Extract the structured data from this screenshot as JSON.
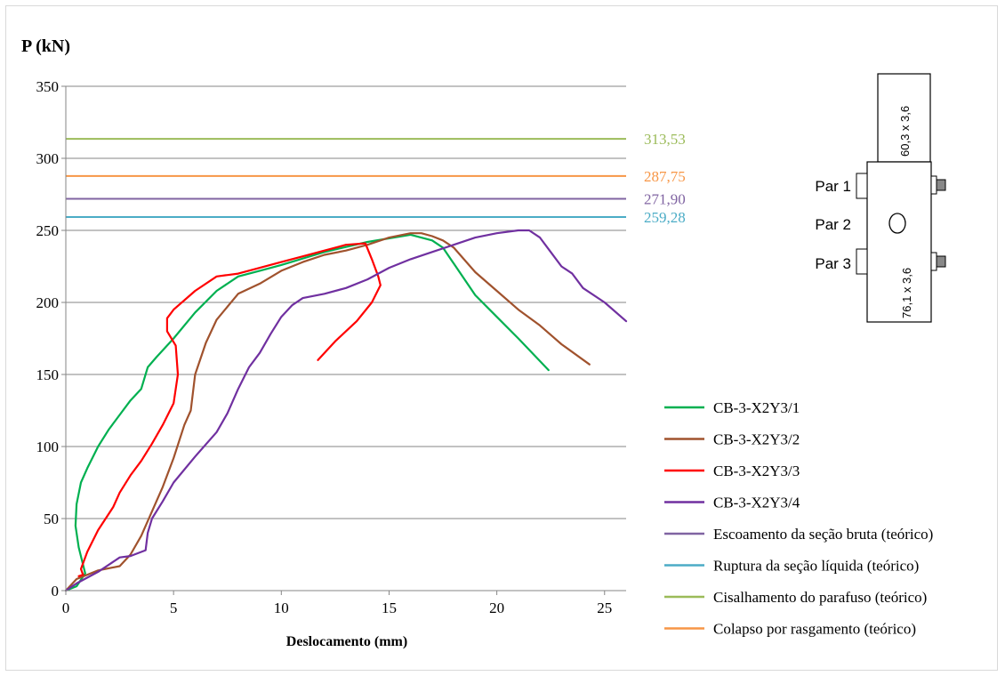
{
  "chart_data": {
    "type": "line",
    "ylabel": "P (kN)",
    "xlabel": "Deslocamento (mm)",
    "xlim": [
      0,
      26
    ],
    "ylim": [
      0,
      350
    ],
    "x_ticks": [
      "0",
      "5",
      "10",
      "15",
      "20",
      "25"
    ],
    "y_ticks": [
      "0",
      "50",
      "100",
      "150",
      "200",
      "250",
      "300",
      "350"
    ],
    "grid": "horizontal",
    "legend_position": "right",
    "series": [
      {
        "name": "CB-3-X2Y3/1",
        "color": "#00b050",
        "x": [
          0,
          0.5,
          0.9,
          0.6,
          0.45,
          0.5,
          0.7,
          1.0,
          1.5,
          2.0,
          2.5,
          3.0,
          3.5,
          3.8,
          4.2,
          5.0,
          6.0,
          7.0,
          8.0,
          9.0,
          10.0,
          12.0,
          14.0,
          16.0,
          17.0,
          17.5,
          18.0,
          19.0,
          20.0,
          21.0,
          22.4
        ],
        "y": [
          0,
          3,
          12,
          30,
          45,
          60,
          75,
          85,
          100,
          112,
          122,
          132,
          140,
          155,
          162,
          175,
          193,
          208,
          218,
          222,
          226,
          235,
          242,
          247,
          243,
          238,
          227,
          205,
          190,
          175,
          153
        ]
      },
      {
        "name": "CB-3-X2Y3/2",
        "color": "#a0522d",
        "x": [
          0,
          0.5,
          1.5,
          2.5,
          3.0,
          3.5,
          4.0,
          4.5,
          5.0,
          5.5,
          5.8,
          6.0,
          6.5,
          7.0,
          8.0,
          9.0,
          10.0,
          11.0,
          12.0,
          13.0,
          14.0,
          15.0,
          16.0,
          16.5,
          17.0,
          17.5,
          18.0,
          19.0,
          20.0,
          21.0,
          22.0,
          23.0,
          24.3
        ],
        "y": [
          0,
          8,
          14,
          17,
          25,
          38,
          55,
          72,
          92,
          115,
          125,
          150,
          172,
          188,
          206,
          213,
          222,
          228,
          233,
          236,
          240,
          245,
          248,
          248,
          246,
          243,
          238,
          221,
          208,
          195,
          184,
          171,
          157
        ]
      },
      {
        "name": "CB-3-X2Y3/3",
        "color": "#ff0000",
        "x": [
          0.6,
          0.8,
          0.7,
          1.0,
          1.5,
          2.2,
          2.5,
          3.0,
          3.5,
          4.0,
          4.5,
          5.0,
          5.2,
          5.1,
          4.7,
          4.7,
          5.0,
          6.0,
          7.0,
          8.0,
          9.0,
          10.0,
          11.0,
          12.0,
          13.0,
          13.9,
          14.2,
          14.5,
          14.6,
          14.2,
          13.5,
          12.5,
          11.7
        ],
        "y": [
          10,
          11,
          15,
          27,
          42,
          58,
          68,
          80,
          90,
          102,
          115,
          130,
          150,
          170,
          180,
          189,
          195,
          208,
          218,
          220,
          224,
          228,
          232,
          236,
          240,
          241,
          230,
          218,
          212,
          200,
          187,
          173,
          160
        ]
      },
      {
        "name": "CB-3-X2Y3/4",
        "color": "#7030a0",
        "x": [
          0,
          0.5,
          1.0,
          1.5,
          2.0,
          2.5,
          3.0,
          3.7,
          3.8,
          4.0,
          4.5,
          5.0,
          6.0,
          7.0,
          7.5,
          8.0,
          8.5,
          9.0,
          9.5,
          10.0,
          10.5,
          11.0,
          12.0,
          13.0,
          14.0,
          15.0,
          16.0,
          17.0,
          18.0,
          19.0,
          20.0,
          21.0,
          21.5,
          22.0,
          22.5,
          23.0,
          23.5,
          24.0,
          25.0,
          26.0
        ],
        "y": [
          0,
          5,
          9,
          13,
          18,
          23,
          24,
          28,
          40,
          50,
          62,
          75,
          93,
          110,
          123,
          140,
          155,
          165,
          178,
          190,
          198,
          203,
          206,
          210,
          216,
          224,
          230,
          235,
          240,
          245,
          248,
          250,
          250,
          245,
          235,
          225,
          220,
          210,
          200,
          187
        ]
      }
    ],
    "reference_lines": [
      {
        "name": "Escoamento da seção bruta (teórico)",
        "value": 271.9,
        "label": "271,90",
        "color": "#8064a2"
      },
      {
        "name": "Ruptura da seção líquida (teórico)",
        "value": 259.28,
        "label": "259,28",
        "color": "#4bacc6"
      },
      {
        "name": "Cisalhamento do parafuso (teórico)",
        "value": 313.53,
        "label": "313,53",
        "color": "#9bbb59"
      },
      {
        "name": "Colapso por rasgamento (teórico)",
        "value": 287.75,
        "label": "287,75",
        "color": "#f79646"
      }
    ]
  },
  "diagram": {
    "top_member_label": "60,3 x 3,6",
    "bottom_member_label": "76,1 x 3,6",
    "pair_labels": [
      "Par 1",
      "Par 2",
      "Par 3"
    ]
  }
}
